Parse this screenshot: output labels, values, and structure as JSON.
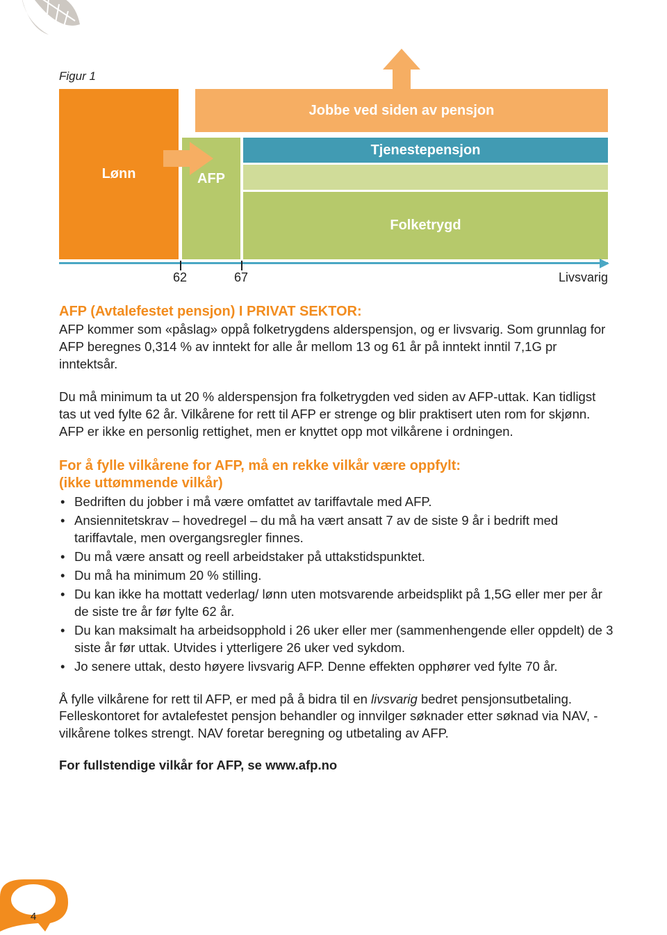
{
  "figure_label": "Figur 1",
  "chart": {
    "lonn": {
      "label": "Lønn",
      "bg": "#f28c1e",
      "color": "#ffffff"
    },
    "jobbe": {
      "label": "Jobbe ved siden av pensjon",
      "bg": "#f6ae63",
      "color": "#ffffff"
    },
    "afp": {
      "label": "AFP",
      "bg": "#b6c96b",
      "color": "#ffffff"
    },
    "tjeneste": {
      "label": "Tjenestepensjon",
      "bg": "#419bb3",
      "color": "#ffffff"
    },
    "gap": {
      "bg": "#d0dc99"
    },
    "folke": {
      "label": "Folketrygd",
      "bg": "#b6c96b",
      "color": "#ffffff"
    },
    "arrow_right_color": "#f6ae63",
    "arrow_up_color": "#f6ae63",
    "axis_color": "#4aa7c4",
    "ticks": [
      {
        "pos": 174,
        "label": "62"
      },
      {
        "pos": 262,
        "label": "67"
      }
    ],
    "end_label": "Livsvarig"
  },
  "heading1": "AFP (Avtalefestet pensjon) I PRIVAT SEKTOR:",
  "para1": "AFP kommer som «påslag» oppå folketrygdens alderspensjon, og er livsvarig. Som grunnlag for AFP beregnes 0,314 % av inntekt for alle år mellom 13 og 61 år på inntekt inntil 7,1G pr inntektsår.",
  "para2": "Du må minimum ta ut 20 % alderspensjon fra folketrygden ved siden av AFP-uttak. Kan tidligst tas ut ved fylte 62 år. Vilkårene for rett til AFP er strenge og blir praktisert uten rom for skjønn. AFP er ikke en personlig rettighet, men er knyttet opp mot vilkårene i ordningen.",
  "heading2_line1": "For å fylle vilkårene for AFP, må en rekke vilkår være oppfylt:",
  "heading2_line2": "(ikke uttømmende vilkår)",
  "bullets": [
    "Bedriften du jobber i må være omfattet av tariffavtale med AFP.",
    "Ansiennitetskrav – hovedregel – du må ha vært ansatt 7 av de siste 9 år i bedrift med tariffavtale, men overgangsregler finnes.",
    "Du må være ansatt og reell arbeidstaker på uttakstidspunktet.",
    "Du må ha minimum 20 % stilling.",
    "Du kan ikke ha mottatt vederlag/ lønn uten motsvarende arbeidsplikt på 1,5G eller mer per år de siste tre år før fylte 62 år.",
    "Du kan maksimalt ha arbeidsopphold i 26 uker eller mer (sammenhengende eller oppdelt) de 3 siste år før uttak. Utvides i ytterligere 26 uker ved sykdom.",
    "Jo senere uttak, desto høyere livsvarig AFP. Denne effekten opphører ved fylte 70 år."
  ],
  "closing_pre": "Å fylle vilkårene for rett til AFP, er med på å bidra til en ",
  "closing_em": "livsvarig",
  "closing_post": " bedret pensjonsutbetaling. Felleskontoret for avtalefestet pensjon behandler og innvilger søknader etter søknad via NAV, - vilkårene tolkes strengt. NAV foretar beregning og utbetaling av AFP.",
  "final": "For fullstendige vilkår for AFP, se www.afp.no",
  "pagenum": "4",
  "leaf_color": "#c8c2bb",
  "bubble_color": "#f28c1e"
}
